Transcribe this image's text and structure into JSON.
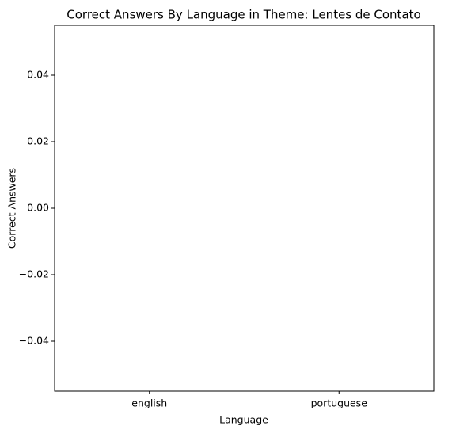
{
  "chart_data": {
    "type": "bar",
    "title": "Correct Answers By Language in Theme: Lentes de Contato",
    "xlabel": "Language",
    "ylabel": "Correct Answers",
    "categories": [
      "english",
      "portuguese"
    ],
    "values": [
      0,
      0
    ],
    "color": "#1f77b4",
    "ylim": [
      -0.055,
      0.055
    ],
    "yticks": [
      {
        "value": -0.04,
        "label": "−0.04"
      },
      {
        "value": -0.02,
        "label": "−0.02"
      },
      {
        "value": 0,
        "label": "0.00"
      },
      0.02,
      0.04
    ]
  }
}
